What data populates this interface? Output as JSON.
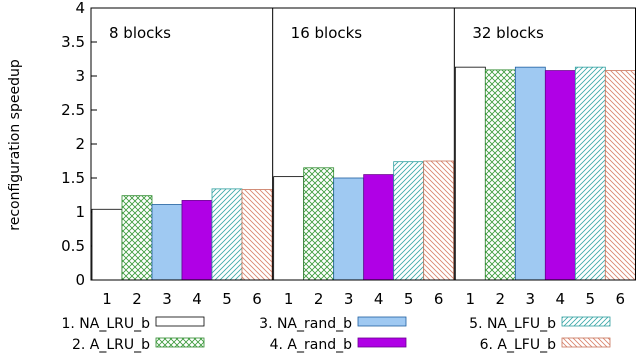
{
  "chart_data": {
    "type": "bar",
    "ylabel": "reconfiguration speedup",
    "ylim": [
      0,
      4
    ],
    "yticks": [
      0,
      0.5,
      1,
      1.5,
      2,
      2.5,
      3,
      3.5,
      4
    ],
    "ytick_labels": [
      "0",
      "0.5",
      "1",
      "1.5",
      "2",
      "2.5",
      "3",
      "3.5",
      "4"
    ],
    "categories": [
      "1",
      "2",
      "3",
      "4",
      "5",
      "6"
    ],
    "groups": [
      {
        "label": "8 blocks",
        "values": [
          1.04,
          1.24,
          1.11,
          1.17,
          1.34,
          1.33
        ]
      },
      {
        "label": "16 blocks",
        "values": [
          1.52,
          1.65,
          1.5,
          1.55,
          1.74,
          1.75
        ]
      },
      {
        "label": "32 blocks",
        "values": [
          3.13,
          3.09,
          3.13,
          3.08,
          3.13,
          3.08
        ]
      }
    ],
    "series": [
      {
        "name": "1. NA_LRU_b",
        "color": "#ffffff",
        "pattern": "none"
      },
      {
        "name": "2. A_LRU_b",
        "color": "#b6dfb1",
        "pattern": "crosshatch-green"
      },
      {
        "name": "3. NA_rand_b",
        "color": "#9fc9f2",
        "pattern": "solid"
      },
      {
        "name": "4. A_rand_b",
        "color": "#b000e6",
        "pattern": "solid"
      },
      {
        "name": "5. NA_LFU_b",
        "color": "#8ed8d8",
        "pattern": "diagonal-teal"
      },
      {
        "name": "6. A_LFU_b",
        "color": "#e9a48c",
        "pattern": "diagonal-orange"
      }
    ],
    "grid": false,
    "legend_position": "bottom"
  }
}
